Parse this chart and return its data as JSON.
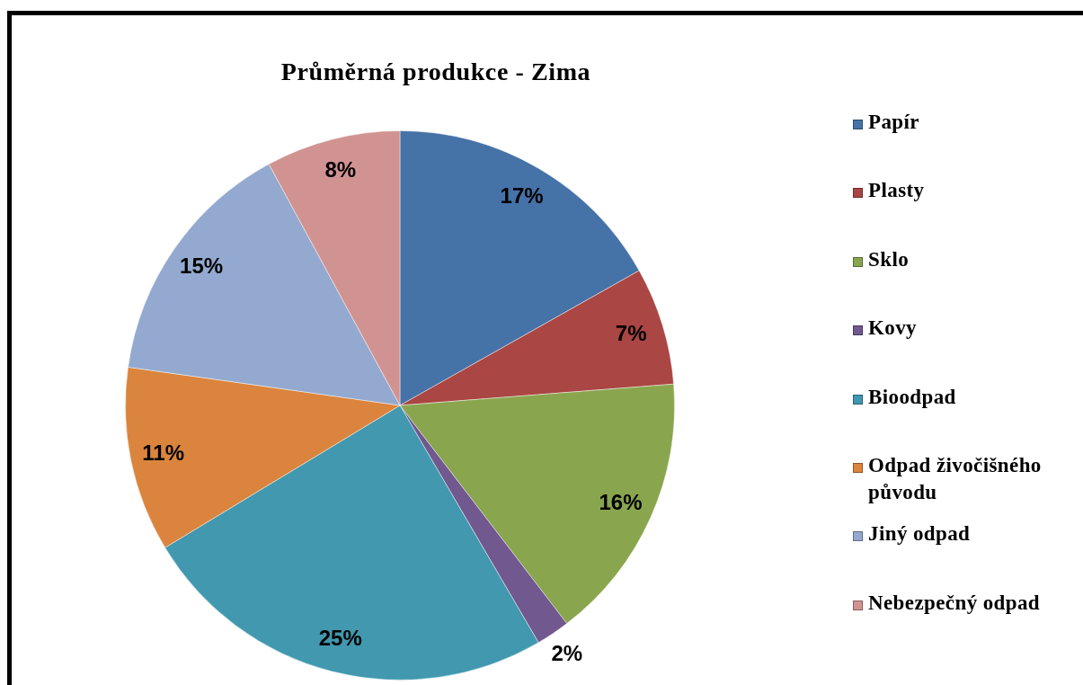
{
  "chart_data": {
    "type": "pie",
    "title": "Průměrná produkce - Zima",
    "categories": [
      "Papír",
      "Plasty",
      "Sklo",
      "Kovy",
      "Bioodpad",
      "Odpad živočišného původu",
      "Jiný odpad",
      "Nebezpečný odpad"
    ],
    "values": [
      17,
      7,
      16,
      2,
      25,
      11,
      15,
      8
    ],
    "colors": [
      "#4572a7",
      "#aa4643",
      "#89a54e",
      "#71588f",
      "#4198af",
      "#db843d",
      "#93a9cf",
      "#d19392"
    ],
    "value_labels": [
      "17%",
      "7%",
      "16%",
      "2%",
      "25%",
      "11%",
      "15%",
      "8%"
    ],
    "legend": "right"
  }
}
